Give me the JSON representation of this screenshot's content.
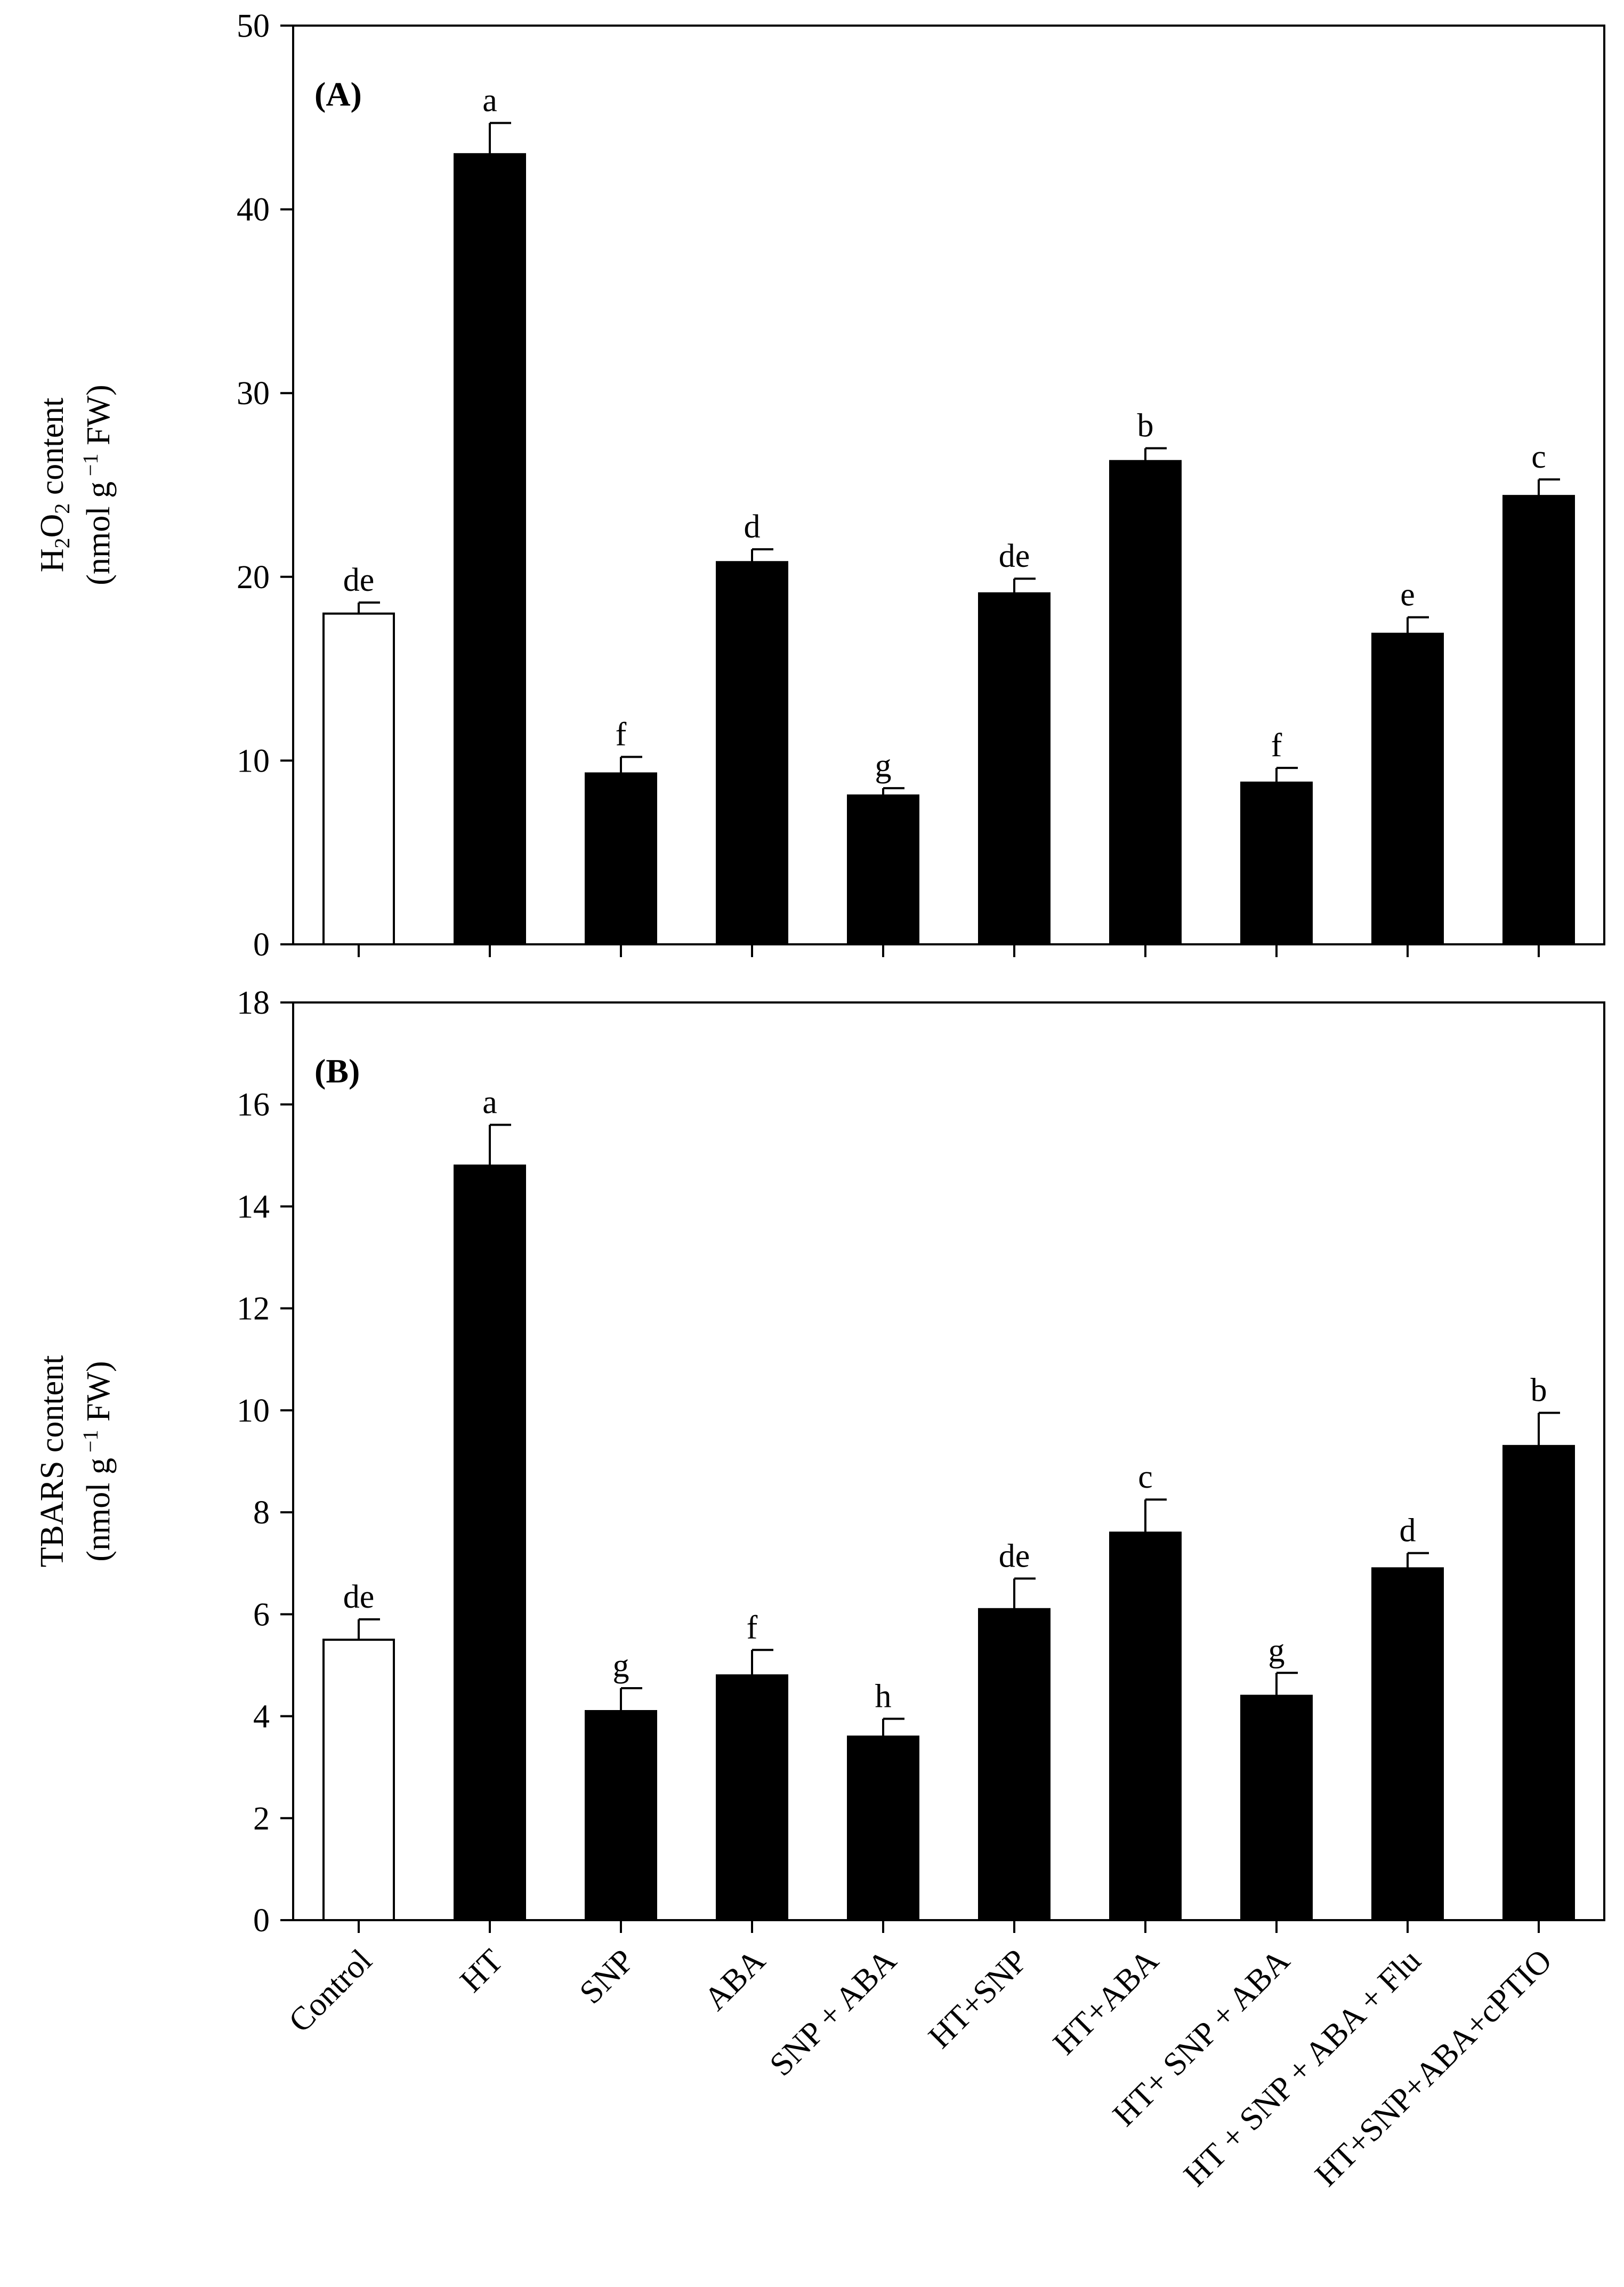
{
  "chart_data": [
    {
      "type": "bar",
      "panel_label": "(A)",
      "ylabel_parts": [
        "H",
        "2",
        "O",
        "2",
        " content"
      ],
      "ylabel_unit_parts": [
        "(nmol g",
        " −1",
        " FW)"
      ],
      "ylim": [
        0,
        50
      ],
      "yticks": [
        0,
        10,
        20,
        30,
        40,
        50
      ],
      "categories": [
        "Control",
        "HT",
        "SNP",
        "ABA",
        "SNP + ABA",
        "HT+SNP",
        "HT+ABA",
        "HT+ SNP + ABA",
        "HT + SNP + ABA + Flu",
        "HT+SNP+ABA+cPTIO"
      ],
      "values": [
        18.0,
        43.0,
        9.3,
        20.8,
        8.1,
        19.1,
        26.3,
        8.8,
        16.9,
        24.4
      ],
      "errors": [
        0.6,
        1.7,
        0.9,
        0.7,
        0.4,
        0.8,
        0.7,
        0.8,
        0.9,
        0.9
      ],
      "significance": [
        "de",
        "a",
        "f",
        "d",
        "g",
        "de",
        "b",
        "f",
        "e",
        "c"
      ],
      "bar_fill": [
        "#ffffff",
        "#000000",
        "#000000",
        "#000000",
        "#000000",
        "#000000",
        "#000000",
        "#000000",
        "#000000",
        "#000000"
      ]
    },
    {
      "type": "bar",
      "panel_label": "(B)",
      "ylabel_parts": [
        "TBARS content"
      ],
      "ylabel_unit_parts": [
        "(nmol g",
        " −1",
        " FW)"
      ],
      "ylim": [
        0,
        18
      ],
      "yticks": [
        0,
        2,
        4,
        6,
        8,
        10,
        12,
        14,
        16,
        18
      ],
      "categories": [
        "Control",
        "HT",
        "SNP",
        "ABA",
        "SNP + ABA",
        "HT+SNP",
        "HT+ABA",
        "HT+ SNP + ABA",
        "HT + SNP + ABA + Flu",
        "HT+SNP+ABA+cPTIO"
      ],
      "values": [
        5.5,
        14.8,
        4.1,
        4.8,
        3.6,
        6.1,
        7.6,
        4.4,
        6.9,
        9.3
      ],
      "errors": [
        0.4,
        0.8,
        0.45,
        0.5,
        0.35,
        0.6,
        0.65,
        0.45,
        0.3,
        0.65
      ],
      "significance": [
        "de",
        "a",
        "g",
        "f",
        "h",
        "de",
        "c",
        "g",
        "d",
        "b"
      ],
      "bar_fill": [
        "#ffffff",
        "#000000",
        "#000000",
        "#000000",
        "#000000",
        "#000000",
        "#000000",
        "#000000",
        "#000000",
        "#000000"
      ]
    }
  ]
}
